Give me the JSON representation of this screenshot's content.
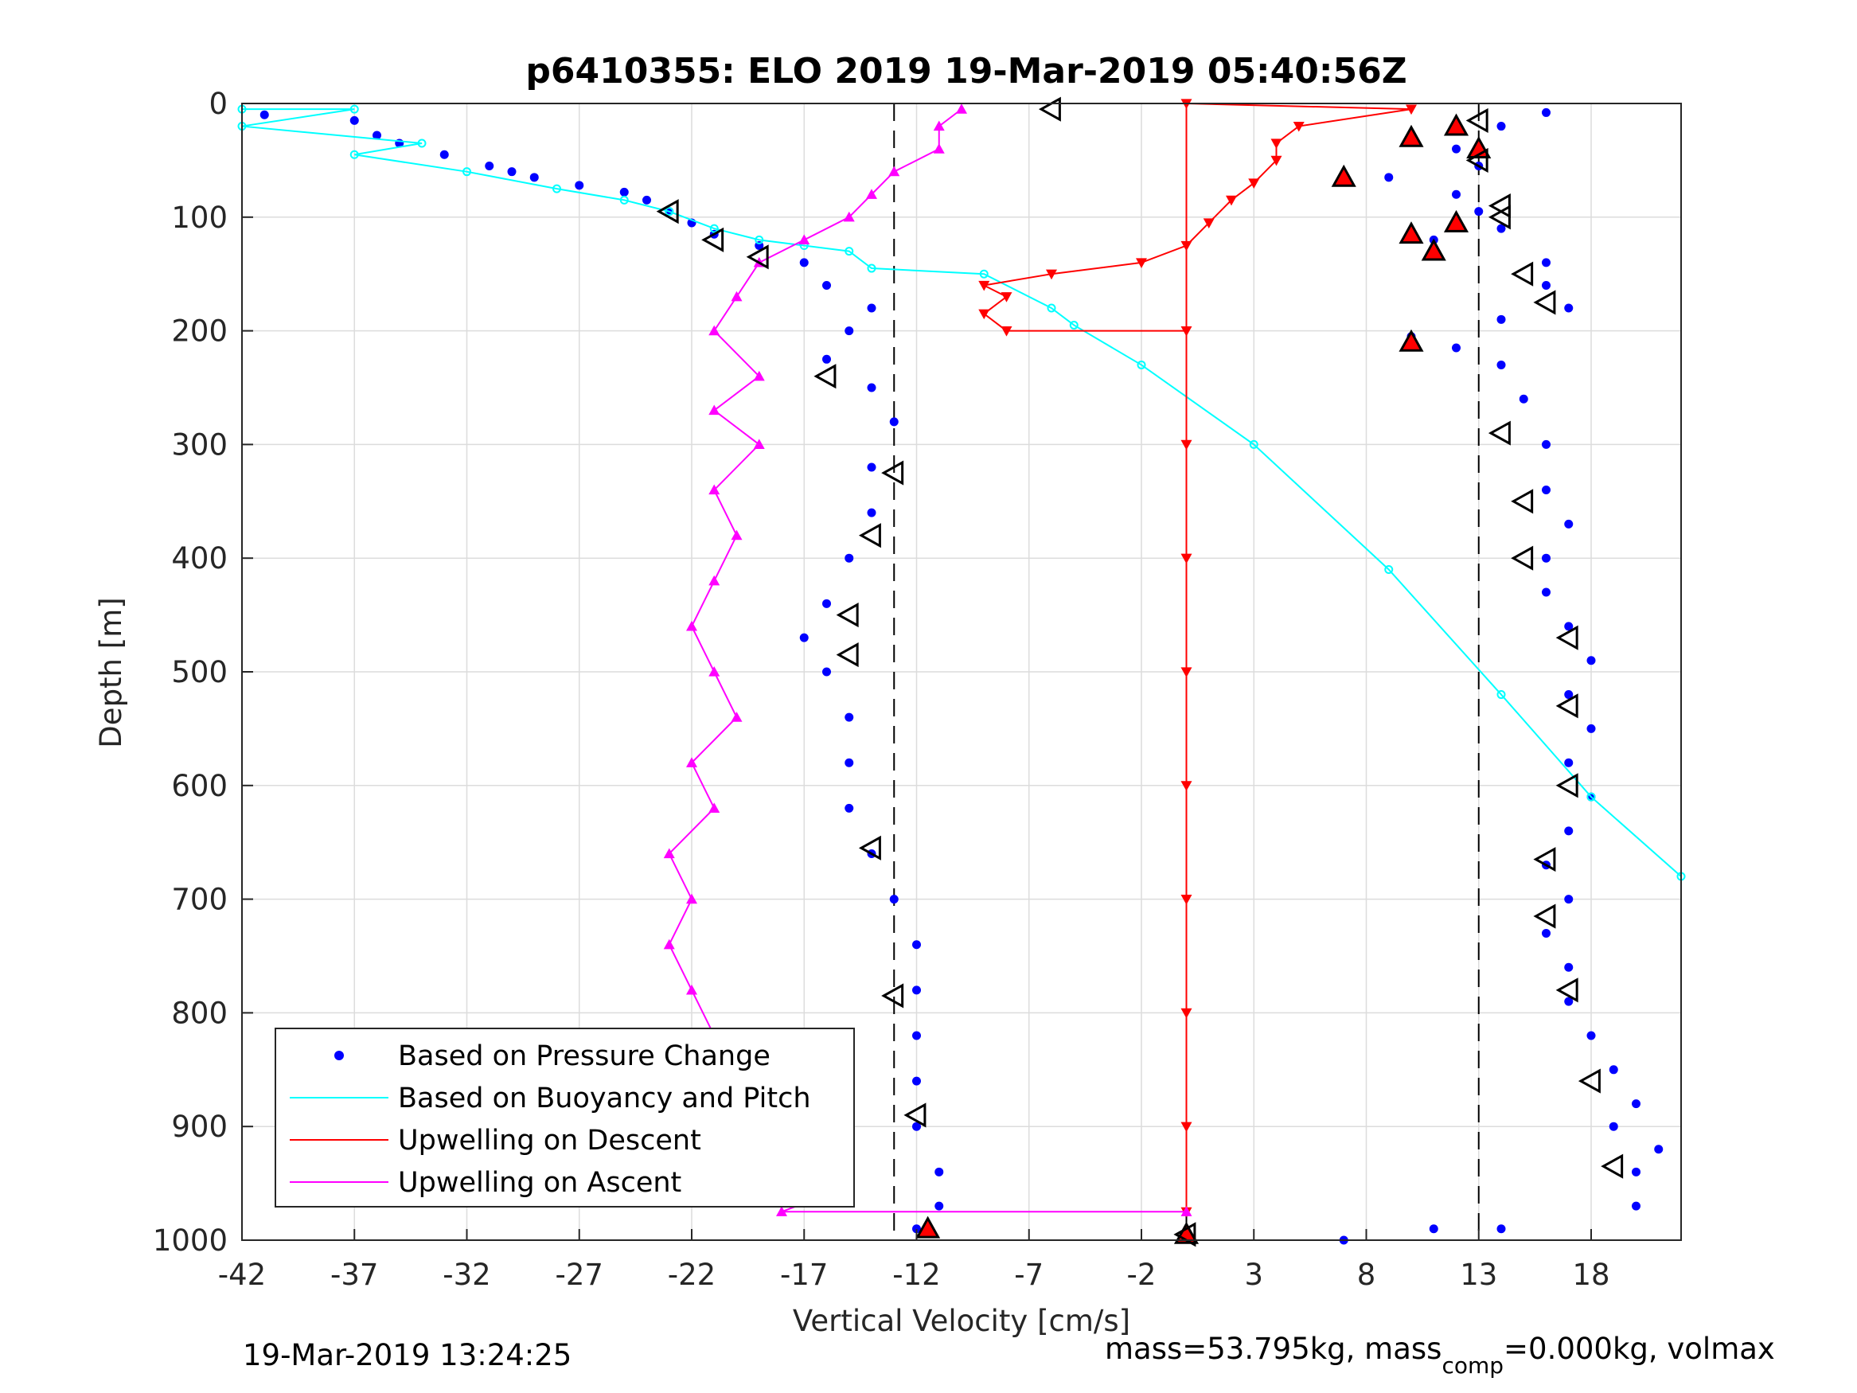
{
  "footer": {
    "timestamp": "19-Mar-2019 13:24:25",
    "mass_text_a": "mass=53.795kg, mass",
    "mass_sub": "comp",
    "mass_text_b": "=0.000kg, volmax"
  },
  "chart_data": {
    "type": "scatter",
    "title": "p6410355: ELO 2019 19-Mar-2019 05:40:56Z",
    "xlabel": "Vertical Velocity [cm/s]",
    "ylabel": "Depth [m]",
    "xlim": [
      -42,
      22
    ],
    "ylim": [
      0,
      1000
    ],
    "y_reversed": true,
    "grid": true,
    "xticks": [
      -42,
      -37,
      -32,
      -27,
      -22,
      -17,
      -12,
      -7,
      -2,
      3,
      8,
      13,
      18
    ],
    "xtick_labels": [
      "-42",
      "-37",
      "-32",
      "-27",
      "-22",
      "-17",
      "-12",
      "-7",
      "-2",
      "3",
      "8",
      "13",
      "18"
    ],
    "yticks": [
      0,
      100,
      200,
      300,
      400,
      500,
      600,
      700,
      800,
      900,
      1000
    ],
    "ytick_labels": [
      "0",
      "100",
      "200",
      "300",
      "400",
      "500",
      "600",
      "700",
      "800",
      "900",
      "1000"
    ],
    "reference_lines": [
      {
        "x": -13,
        "style": "dashed",
        "color": "#000000"
      },
      {
        "x": 0,
        "style": "solid",
        "color": "#000000"
      },
      {
        "x": 13,
        "style": "dashed",
        "color": "#000000"
      }
    ],
    "legend": {
      "placement": "bottom-left",
      "entries": [
        {
          "label": "Based on Pressure Change",
          "color": "#0000ff",
          "style": "dot"
        },
        {
          "label": "Based on Buoyancy and Pitch",
          "color": "#00ffff",
          "style": "line"
        },
        {
          "label": "Upwelling on Descent",
          "color": "#ff0000",
          "style": "line"
        },
        {
          "label": "Upwelling on Ascent",
          "color": "#ff00ff",
          "style": "line"
        }
      ]
    },
    "series": [
      {
        "name": "Based on Pressure Change",
        "role": "descent",
        "color": "#0000ff",
        "marker": "dot",
        "points": [
          [
            -41,
            10
          ],
          [
            -37,
            15
          ],
          [
            -36,
            28
          ],
          [
            -35,
            35
          ],
          [
            -33,
            45
          ],
          [
            -31,
            55
          ],
          [
            -30,
            60
          ],
          [
            -29,
            65
          ],
          [
            -27,
            72
          ],
          [
            -25,
            78
          ],
          [
            -24,
            85
          ],
          [
            -23,
            95
          ],
          [
            -22,
            105
          ],
          [
            -21,
            115
          ],
          [
            -19,
            125
          ],
          [
            -17,
            140
          ],
          [
            -16,
            160
          ],
          [
            -14,
            180
          ],
          [
            -15,
            200
          ],
          [
            -16,
            225
          ],
          [
            -14,
            250
          ],
          [
            -13,
            280
          ],
          [
            -14,
            320
          ],
          [
            -14,
            360
          ],
          [
            -15,
            400
          ],
          [
            -16,
            440
          ],
          [
            -17,
            470
          ],
          [
            -16,
            500
          ],
          [
            -15,
            540
          ],
          [
            -15,
            580
          ],
          [
            -15,
            620
          ],
          [
            -14,
            660
          ],
          [
            -13,
            700
          ],
          [
            -12,
            740
          ],
          [
            -12,
            780
          ],
          [
            -12,
            820
          ],
          [
            -12,
            860
          ],
          [
            -12,
            900
          ],
          [
            -11,
            940
          ],
          [
            -11,
            970
          ],
          [
            -12,
            990
          ]
        ]
      },
      {
        "name": "Based on Pressure Change",
        "role": "ascent",
        "color": "#0000ff",
        "marker": "dot",
        "points": [
          [
            7,
            1000
          ],
          [
            11,
            990
          ],
          [
            14,
            990
          ],
          [
            20,
            970
          ],
          [
            20,
            940
          ],
          [
            21,
            920
          ],
          [
            19,
            900
          ],
          [
            20,
            880
          ],
          [
            19,
            850
          ],
          [
            18,
            820
          ],
          [
            17,
            790
          ],
          [
            17,
            760
          ],
          [
            16,
            730
          ],
          [
            17,
            700
          ],
          [
            16,
            670
          ],
          [
            17,
            640
          ],
          [
            18,
            610
          ],
          [
            17,
            580
          ],
          [
            18,
            550
          ],
          [
            17,
            520
          ],
          [
            18,
            490
          ],
          [
            17,
            460
          ],
          [
            16,
            430
          ],
          [
            16,
            400
          ],
          [
            17,
            370
          ],
          [
            16,
            340
          ],
          [
            16,
            300
          ],
          [
            15,
            260
          ],
          [
            14,
            230
          ],
          [
            12,
            215
          ],
          [
            10,
            205
          ],
          [
            14,
            190
          ],
          [
            17,
            180
          ],
          [
            16,
            160
          ],
          [
            16,
            140
          ],
          [
            14,
            110
          ],
          [
            11,
            120
          ],
          [
            13,
            95
          ],
          [
            12,
            80
          ],
          [
            9,
            65
          ],
          [
            13,
            55
          ],
          [
            12,
            40
          ],
          [
            14,
            20
          ],
          [
            16,
            8
          ]
        ]
      },
      {
        "name": "Based on Buoyancy and Pitch",
        "color": "#00ffff",
        "marker": "line",
        "points": [
          [
            -42,
            5
          ],
          [
            -37,
            5
          ],
          [
            -42,
            20
          ],
          [
            -34,
            35
          ],
          [
            -37,
            45
          ],
          [
            -32,
            60
          ],
          [
            -28,
            75
          ],
          [
            -25,
            85
          ],
          [
            -23,
            95
          ],
          [
            -21,
            110
          ],
          [
            -19,
            120
          ],
          [
            -17,
            125
          ],
          [
            -15,
            130
          ],
          [
            -14,
            145
          ],
          [
            -9,
            150
          ],
          [
            -6,
            180
          ],
          [
            -5,
            195
          ],
          [
            -2,
            230
          ],
          [
            3,
            300
          ],
          [
            9,
            410
          ],
          [
            14,
            520
          ],
          [
            18,
            610
          ],
          [
            22,
            680
          ]
        ]
      },
      {
        "name": "Upwelling on Descent",
        "color": "#ff0000",
        "marker": "triangle-down",
        "points": [
          [
            0,
            200
          ],
          [
            -8,
            200
          ],
          [
            -9,
            185
          ],
          [
            -8,
            170
          ],
          [
            -9,
            160
          ],
          [
            -6,
            150
          ],
          [
            -2,
            140
          ],
          [
            0,
            125
          ],
          [
            1,
            105
          ],
          [
            2,
            85
          ],
          [
            3,
            70
          ],
          [
            4,
            50
          ],
          [
            4,
            35
          ],
          [
            5,
            20
          ],
          [
            10,
            5
          ],
          [
            0,
            0
          ],
          [
            0,
            300
          ],
          [
            0,
            400
          ],
          [
            0,
            500
          ],
          [
            0,
            600
          ],
          [
            0,
            700
          ],
          [
            0,
            800
          ],
          [
            0,
            900
          ],
          [
            0,
            975
          ]
        ]
      },
      {
        "name": "Upwelling on Ascent",
        "color": "#ff00ff",
        "marker": "triangle-up",
        "points": [
          [
            0,
            975
          ],
          [
            -18,
            975
          ],
          [
            -16,
            960
          ],
          [
            -21,
            940
          ],
          [
            -20,
            900
          ],
          [
            -22,
            860
          ],
          [
            -21,
            820
          ],
          [
            -22,
            780
          ],
          [
            -23,
            740
          ],
          [
            -22,
            700
          ],
          [
            -23,
            660
          ],
          [
            -21,
            620
          ],
          [
            -22,
            580
          ],
          [
            -20,
            540
          ],
          [
            -21,
            500
          ],
          [
            -22,
            460
          ],
          [
            -21,
            420
          ],
          [
            -20,
            380
          ],
          [
            -21,
            340
          ],
          [
            -19,
            300
          ],
          [
            -21,
            270
          ],
          [
            -19,
            240
          ],
          [
            -21,
            200
          ],
          [
            -20,
            170
          ],
          [
            -19,
            140
          ],
          [
            -17,
            120
          ],
          [
            -15,
            100
          ],
          [
            -14,
            80
          ],
          [
            -13,
            60
          ],
          [
            -11,
            40
          ],
          [
            -11,
            20
          ],
          [
            -10,
            5
          ]
        ]
      },
      {
        "name": "Reference markers",
        "role": "markers",
        "color": "#ff0000",
        "marker": "triangle-red",
        "points": [
          [
            -11.5,
            990
          ],
          [
            0,
            995
          ],
          [
            7,
            65
          ],
          [
            10,
            30
          ],
          [
            12,
            20
          ],
          [
            13,
            40
          ],
          [
            12,
            105
          ],
          [
            10,
            115
          ],
          [
            11,
            130
          ],
          [
            10,
            210
          ]
        ]
      },
      {
        "name": "Reference markers",
        "role": "outline",
        "color": "#000000",
        "marker": "triangle-open",
        "points": [
          [
            -6,
            5
          ],
          [
            13,
            15
          ],
          [
            13,
            50
          ],
          [
            14,
            90
          ],
          [
            14,
            100
          ],
          [
            -23,
            95
          ],
          [
            -21,
            120
          ],
          [
            -19,
            135
          ],
          [
            15,
            150
          ],
          [
            16,
            175
          ],
          [
            -16,
            240
          ],
          [
            14,
            290
          ],
          [
            -13,
            325
          ],
          [
            15,
            350
          ],
          [
            -14,
            380
          ],
          [
            15,
            400
          ],
          [
            -15,
            450
          ],
          [
            -15,
            485
          ],
          [
            17,
            470
          ],
          [
            17,
            530
          ],
          [
            17,
            600
          ],
          [
            -14,
            655
          ],
          [
            16,
            665
          ],
          [
            16,
            715
          ],
          [
            -13,
            785
          ],
          [
            17,
            780
          ],
          [
            18,
            860
          ],
          [
            -12,
            890
          ],
          [
            19,
            935
          ],
          [
            0,
            995
          ]
        ]
      }
    ]
  }
}
